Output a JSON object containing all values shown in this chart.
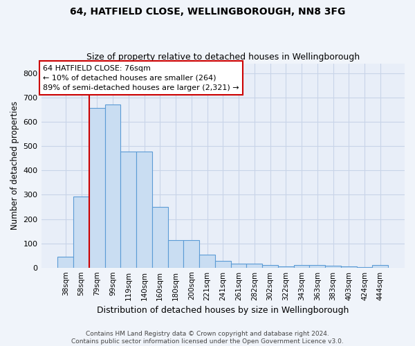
{
  "title1": "64, HATFIELD CLOSE, WELLINGBOROUGH, NN8 3FG",
  "title2": "Size of property relative to detached houses in Wellingborough",
  "xlabel": "Distribution of detached houses by size in Wellingborough",
  "ylabel": "Number of detached properties",
  "annotation_title": "64 HATFIELD CLOSE: 76sqm",
  "annotation_line1": "← 10% of detached houses are smaller (264)",
  "annotation_line2": "89% of semi-detached houses are larger (2,321) →",
  "footer1": "Contains HM Land Registry data © Crown copyright and database right 2024.",
  "footer2": "Contains public sector information licensed under the Open Government Licence v3.0.",
  "bar_labels": [
    "38sqm",
    "58sqm",
    "79sqm",
    "99sqm",
    "119sqm",
    "140sqm",
    "160sqm",
    "180sqm",
    "200sqm",
    "221sqm",
    "241sqm",
    "261sqm",
    "282sqm",
    "302sqm",
    "322sqm",
    "343sqm",
    "363sqm",
    "383sqm",
    "403sqm",
    "424sqm",
    "444sqm"
  ],
  "bar_values": [
    45,
    293,
    657,
    672,
    479,
    479,
    249,
    113,
    113,
    52,
    27,
    16,
    16,
    11,
    6,
    10,
    10,
    7,
    5,
    1,
    10
  ],
  "bar_color": "#c9ddf2",
  "bar_edge_color": "#5b9bd5",
  "marker_color": "#cc0000",
  "ylim": [
    0,
    840
  ],
  "yticks": [
    0,
    100,
    200,
    300,
    400,
    500,
    600,
    700,
    800
  ],
  "annotation_box_color": "#ffffff",
  "annotation_box_edge": "#cc0000",
  "grid_color": "#c8d4e8",
  "bg_color": "#e8eef8",
  "fig_bg_color": "#f0f4fa"
}
